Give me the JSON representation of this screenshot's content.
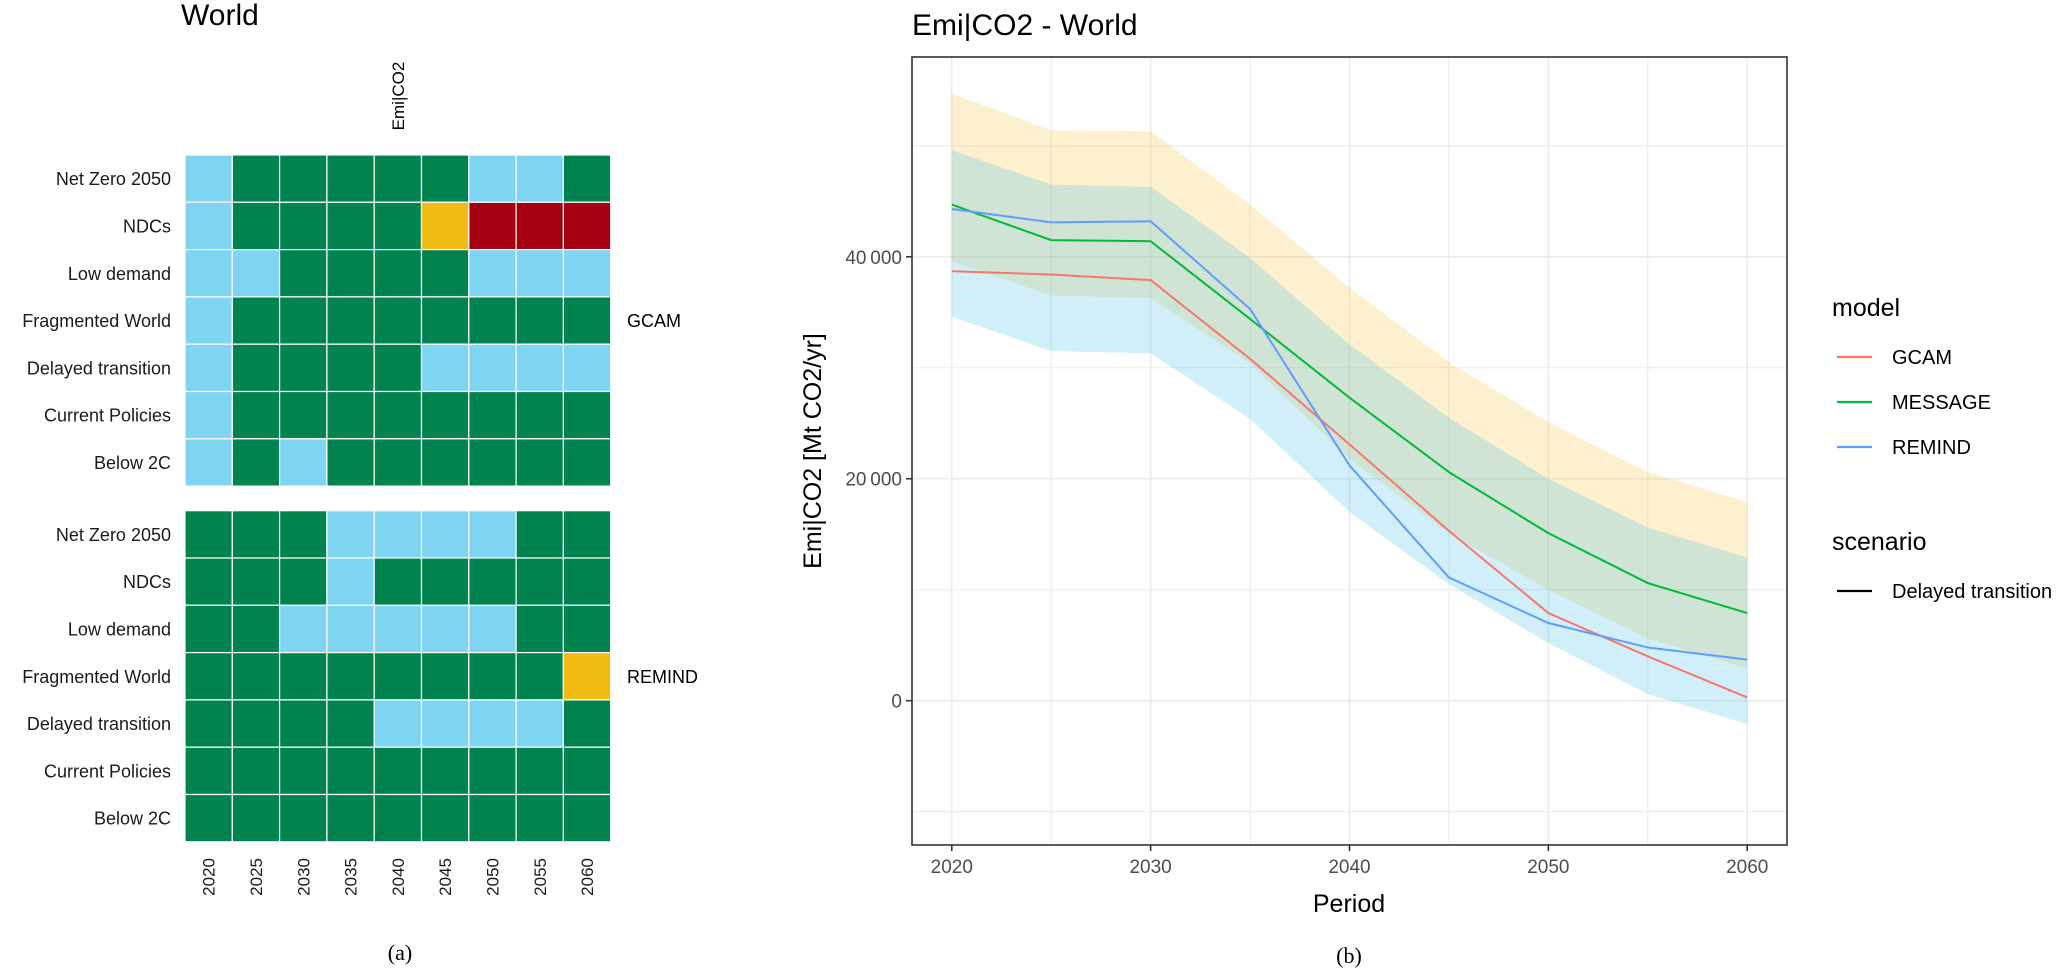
{
  "panel_a": {
    "title": "World",
    "variable_label": "Emi|CO2",
    "caption": "(a)",
    "colors": {
      "green": "#00834f",
      "lightblue": "#7fd4f1",
      "yellow": "#f0bb12",
      "red": "#a50012"
    }
  },
  "panel_b": {
    "caption": "(b)"
  },
  "chart_data": [
    {
      "type": "heatmap",
      "title": "World",
      "column_label": "Emi|CO2",
      "x": [
        "2020",
        "2025",
        "2030",
        "2035",
        "2040",
        "2045",
        "2050",
        "2055",
        "2060"
      ],
      "rows": [
        "Net Zero 2050",
        "NDCs",
        "Low demand",
        "Fragmented World",
        "Delayed transition",
        "Current Policies",
        "Below 2C"
      ],
      "facets": [
        {
          "name": "GCAM",
          "cells": [
            [
              "lightblue",
              "green",
              "green",
              "green",
              "green",
              "green",
              "lightblue",
              "lightblue",
              "green"
            ],
            [
              "lightblue",
              "green",
              "green",
              "green",
              "green",
              "yellow",
              "red",
              "red",
              "red"
            ],
            [
              "lightblue",
              "lightblue",
              "green",
              "green",
              "green",
              "green",
              "lightblue",
              "lightblue",
              "lightblue"
            ],
            [
              "lightblue",
              "green",
              "green",
              "green",
              "green",
              "green",
              "green",
              "green",
              "green"
            ],
            [
              "lightblue",
              "green",
              "green",
              "green",
              "green",
              "lightblue",
              "lightblue",
              "lightblue",
              "lightblue"
            ],
            [
              "lightblue",
              "green",
              "green",
              "green",
              "green",
              "green",
              "green",
              "green",
              "green"
            ],
            [
              "lightblue",
              "green",
              "lightblue",
              "green",
              "green",
              "green",
              "green",
              "green",
              "green"
            ]
          ]
        },
        {
          "name": "REMIND",
          "cells": [
            [
              "green",
              "green",
              "green",
              "lightblue",
              "lightblue",
              "lightblue",
              "lightblue",
              "green",
              "green"
            ],
            [
              "green",
              "green",
              "green",
              "lightblue",
              "green",
              "green",
              "green",
              "green",
              "green"
            ],
            [
              "green",
              "green",
              "lightblue",
              "lightblue",
              "lightblue",
              "lightblue",
              "lightblue",
              "green",
              "green"
            ],
            [
              "green",
              "green",
              "green",
              "green",
              "green",
              "green",
              "green",
              "green",
              "yellow"
            ],
            [
              "green",
              "green",
              "green",
              "green",
              "lightblue",
              "lightblue",
              "lightblue",
              "lightblue",
              "green"
            ],
            [
              "green",
              "green",
              "green",
              "green",
              "green",
              "green",
              "green",
              "green",
              "green"
            ],
            [
              "green",
              "green",
              "green",
              "green",
              "green",
              "green",
              "green",
              "green",
              "green"
            ]
          ]
        }
      ]
    },
    {
      "type": "line",
      "title": "Emi|CO2 - World",
      "xlabel": "Period",
      "ylabel": "Emi|CO2 [Mt CO2/yr]",
      "x": [
        2020,
        2025,
        2030,
        2035,
        2040,
        2045,
        2050,
        2055,
        2060
      ],
      "xlim": [
        2018,
        2062
      ],
      "ylim": [
        -13000,
        58000
      ],
      "xticks": [
        2020,
        2030,
        2040,
        2050,
        2060
      ],
      "xtick_labels": [
        "2020",
        "2030",
        "2040",
        "2050",
        "2060"
      ],
      "yticks": [
        0,
        20000,
        40000
      ],
      "ytick_labels": [
        "0",
        "20 000",
        "40 000"
      ],
      "grid": true,
      "bands": [
        {
          "name": "upper-band",
          "color": "#f5c23b",
          "opacity": 0.25,
          "upper": [
            54700,
            51400,
            51300,
            44700,
            37200,
            30500,
            25100,
            20600,
            17900
          ],
          "lower": [
            39600,
            36500,
            36300,
            30400,
            21800,
            15100,
            10000,
            5600,
            2900
          ]
        },
        {
          "name": "lower-band",
          "color": "#56c3e8",
          "opacity": 0.27,
          "upper": [
            49600,
            46500,
            46300,
            39900,
            32100,
            25500,
            20000,
            15600,
            12900
          ],
          "lower": [
            34600,
            31500,
            31300,
            25400,
            17000,
            10500,
            5200,
            600,
            -2100
          ]
        }
      ],
      "series": [
        {
          "name": "GCAM",
          "color": "#f8766d",
          "values": [
            38700,
            38400,
            37900,
            30800,
            23100,
            15300,
            7900,
            4000,
            300
          ]
        },
        {
          "name": "MESSAGE",
          "color": "#00ba38",
          "values": [
            44700,
            41500,
            41400,
            34400,
            27300,
            20600,
            15100,
            10600,
            7900
          ]
        },
        {
          "name": "REMIND",
          "color": "#619cff",
          "values": [
            44300,
            43100,
            43200,
            35300,
            21200,
            11100,
            7000,
            4800,
            3700
          ]
        }
      ],
      "legend": {
        "placement": "right",
        "model_title": "model",
        "scenario_title": "scenario",
        "scenario_items": [
          {
            "name": "Delayed transition",
            "color": "#000000"
          }
        ]
      }
    }
  ]
}
